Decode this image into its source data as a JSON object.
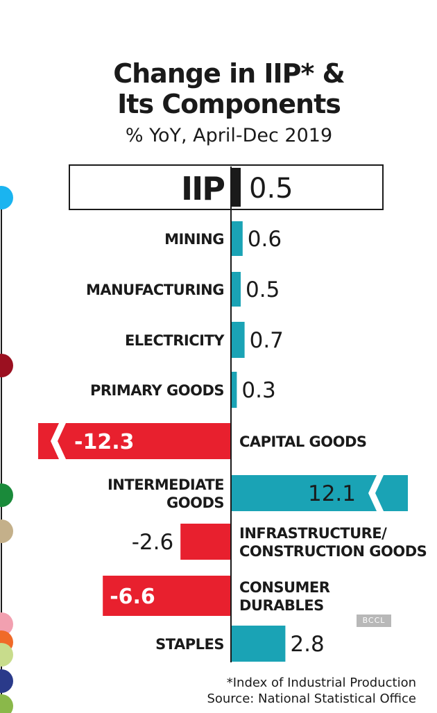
{
  "chart_data": {
    "type": "bar",
    "orientation": "horizontal",
    "title_line1": "Change in IIP* &",
    "title_line2": "Its Components",
    "subtitle": "% YoY, April-Dec 2019",
    "xlabel": "",
    "ylabel": "",
    "categories": [
      [
        "IIP"
      ],
      [
        "MINING"
      ],
      [
        "MANUFACTURING"
      ],
      [
        "ELECTRICITY"
      ],
      [
        "PRIMARY GOODS"
      ],
      [
        "CAPITAL GOODS"
      ],
      [
        "INTERMEDIATE",
        "GOODS"
      ],
      [
        "INFRASTRUCTURE/",
        "CONSTRUCTION GOODS"
      ],
      [
        "CONSUMER",
        "DURABLES"
      ],
      [
        "STAPLES"
      ]
    ],
    "values": [
      0.5,
      0.6,
      0.5,
      0.7,
      0.3,
      -12.3,
      12.1,
      -2.6,
      -6.6,
      2.8
    ],
    "value_labels": [
      "0.5",
      "0.6",
      "0.5",
      "0.7",
      "0.3",
      "-12.3",
      "12.1",
      "-2.6",
      "-6.6",
      "2.8"
    ],
    "axis_break_on": [
      "CAPITAL GOODS",
      "INTERMEDIATE GOODS"
    ],
    "highlighted": "IIP",
    "grid": false,
    "legend": "none",
    "colors": {
      "positive": "#1aa3b5",
      "negative": "#e8202e",
      "highlight": "#1a1a1a",
      "axis": "#1a1a1a"
    }
  },
  "footnote_line1": "*Index of Industrial Production",
  "footnote_line2": "Source: National Statistical Office",
  "watermark": "BCCL",
  "side_timeline": {
    "dot_colors": [
      "#1ab4f0",
      "#9b1020",
      "#1a8a3a",
      "#c4b08a",
      "#f2a0b0",
      "#f06a28",
      "#c8dc8c",
      "#2a3a8a",
      "#8ab84a"
    ]
  }
}
